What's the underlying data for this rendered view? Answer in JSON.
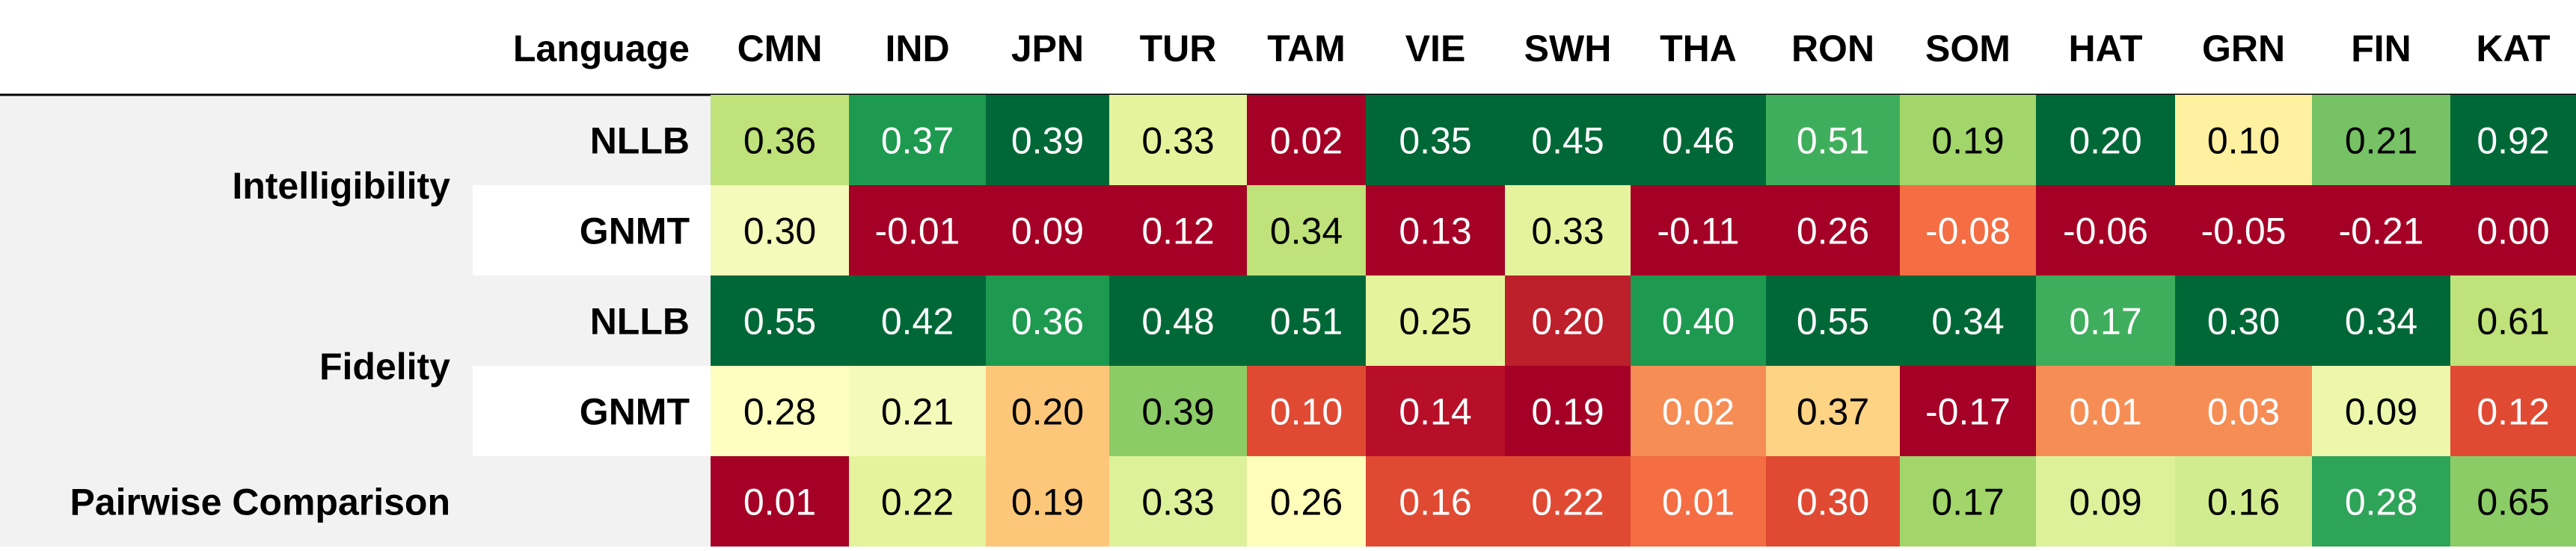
{
  "chart_data": {
    "type": "heatmap",
    "corner_label": "Language",
    "columns": [
      "CMN",
      "IND",
      "JPN",
      "TUR",
      "TAM",
      "VIE",
      "SWH",
      "THA",
      "RON",
      "SOM",
      "HAT",
      "GRN",
      "FIN",
      "KAT"
    ],
    "groups": [
      {
        "label": "Intelligibility",
        "rows": [
          "NLLB",
          "GNMT"
        ]
      },
      {
        "label": "Fidelity",
        "rows": [
          "NLLB",
          "GNMT"
        ]
      },
      {
        "label": "Pairwise Comparison",
        "rows": [
          ""
        ]
      }
    ],
    "values": [
      [
        "0.36",
        "0.37",
        "0.39",
        "0.33",
        "0.02",
        "0.35",
        "0.45",
        "0.46",
        "0.51",
        "0.19",
        "0.20",
        "0.10",
        "0.21",
        "0.92"
      ],
      [
        "0.30",
        "-0.01",
        "0.09",
        "0.12",
        "0.34",
        "0.13",
        "0.33",
        "-0.11",
        "0.26",
        "-0.08",
        "-0.06",
        "-0.05",
        "-0.21",
        "0.00"
      ],
      [
        "0.55",
        "0.42",
        "0.36",
        "0.48",
        "0.51",
        "0.25",
        "0.20",
        "0.40",
        "0.55",
        "0.34",
        "0.17",
        "0.30",
        "0.34",
        "0.61"
      ],
      [
        "0.28",
        "0.21",
        "0.20",
        "0.39",
        "0.10",
        "0.14",
        "0.19",
        "0.02",
        "0.37",
        "-0.17",
        "0.01",
        "0.03",
        "0.09",
        "0.12"
      ],
      [
        "0.01",
        "0.22",
        "0.19",
        "0.33",
        "0.26",
        "0.16",
        "0.22",
        "0.01",
        "0.30",
        "0.17",
        "0.09",
        "0.16",
        "0.28",
        "0.65"
      ]
    ],
    "cell_colors": [
      [
        "#bfe27a",
        "#1e9a50",
        "#006837",
        "#e5f49c",
        "#a50026",
        "#006837",
        "#006837",
        "#006837",
        "#3fae5c",
        "#a2d56a",
        "#006837",
        "#fff1a0",
        "#76c264",
        "#006837"
      ],
      [
        "#f4faba",
        "#a50026",
        "#a50026",
        "#a50026",
        "#bfe27a",
        "#a50026",
        "#e5f49c",
        "#a50026",
        "#a50026",
        "#f46d43",
        "#a50026",
        "#a50026",
        "#a50026",
        "#a50026"
      ],
      [
        "#006837",
        "#006837",
        "#1e9a50",
        "#006837",
        "#006837",
        "#e5f49c",
        "#bd1f2b",
        "#1e9a50",
        "#006837",
        "#006837",
        "#3fae5c",
        "#006837",
        "#006837",
        "#bfe27a"
      ],
      [
        "#fdfec0",
        "#f4faba",
        "#fdc77a",
        "#8ccc66",
        "#e04a33",
        "#b80f29",
        "#a50026",
        "#f68d55",
        "#fdd384",
        "#a50026",
        "#f68d55",
        "#f68d55",
        "#edf7ab",
        "#e04a33"
      ],
      [
        "#a50026",
        "#e5f49c",
        "#fdc77a",
        "#dcf19a",
        "#fefeba",
        "#e04a33",
        "#e04a33",
        "#f46d43",
        "#e04a33",
        "#a2d56a",
        "#dcf19a",
        "#d1ec8f",
        "#2ea458",
        "#8ccc66"
      ]
    ],
    "light_text_colors": [
      "#006837",
      "#1e9a50",
      "#3fae5c",
      "#2ea458",
      "#a50026",
      "#b80f29",
      "#bd1f2b",
      "#e04a33",
      "#f46d43",
      "#f68d55"
    ]
  }
}
